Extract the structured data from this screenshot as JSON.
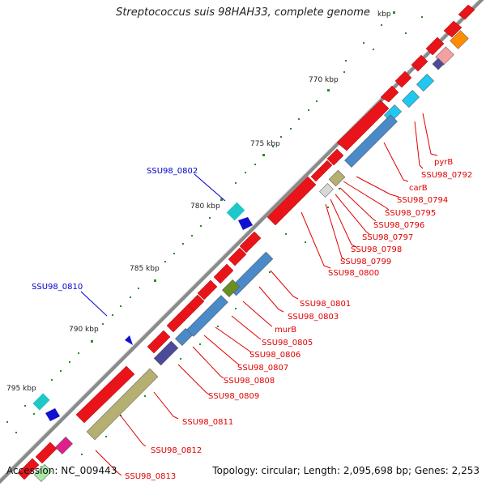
{
  "title": "Streptococcus suis 98HAH33, complete genome",
  "footer": {
    "accession": "Accession: NC_009443",
    "summary": "Topology: circular; Length: 2,095,698 bp; Genes: 2,253"
  },
  "colors": {
    "forward_gene": "#e8141a",
    "backbone": "#8a8a8a",
    "label_red": "#e00000",
    "label_blue": "#0000cc",
    "tick": "#2a8a2a"
  },
  "scale_labels": [
    "770 kbp",
    "775 kbp",
    "780 kbp",
    "785 kbp",
    "790 kbp",
    "795 kbp"
  ],
  "genes_right": [
    {
      "label": "pyrB"
    },
    {
      "label": "SSU98_0792"
    },
    {
      "label": "carB"
    },
    {
      "label": "SSU98_0794"
    },
    {
      "label": "SSU98_0795"
    },
    {
      "label": "SSU98_0796"
    },
    {
      "label": "SSU98_0797"
    },
    {
      "label": "SSU98_0798"
    },
    {
      "label": "SSU98_0799"
    },
    {
      "label": "SSU98_0800"
    },
    {
      "label": "SSU98_0801"
    },
    {
      "label": "SSU98_0803"
    },
    {
      "label": "murB"
    },
    {
      "label": "SSU98_0805"
    },
    {
      "label": "SSU98_0806"
    },
    {
      "label": "SSU98_0807"
    },
    {
      "label": "SSU98_0808"
    },
    {
      "label": "SSU98_0809"
    },
    {
      "label": "SSU98_0811"
    },
    {
      "label": "SSU98_0812"
    },
    {
      "label": "SSU98_0813"
    }
  ],
  "genes_left": [
    {
      "label": "SSU98_0802"
    },
    {
      "label": "SSU98_0810"
    }
  ]
}
